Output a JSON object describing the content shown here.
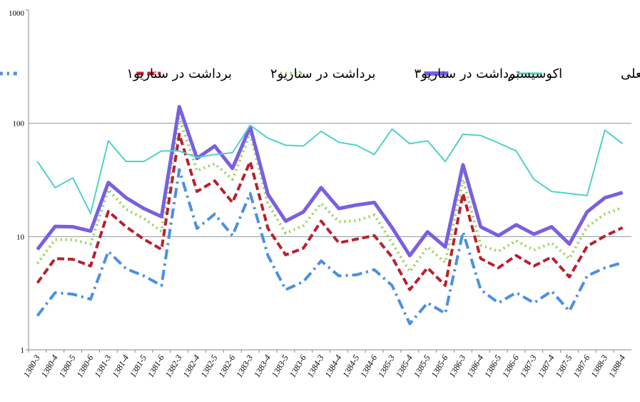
{
  "chart_data": {
    "type": "line",
    "log_scale": true,
    "grid": true,
    "legend_position": "top-right",
    "categories": [
      "1380-3",
      "1380-4",
      "1380-5",
      "1380-6",
      "1381-3",
      "1381-4",
      "1381-5",
      "1381-6",
      "1382-3",
      "1382-4",
      "1382-5",
      "1382-6",
      "1383-3",
      "1383-4",
      "1383-5",
      "1383-6",
      "1384-3",
      "1384-4",
      "1384-5",
      "1384-6",
      "1385-3",
      "1385-4",
      "1385-5",
      "1385-6",
      "1386-3",
      "1386-4",
      "1386-5",
      "1386-6",
      "1387-3",
      "1387-4",
      "1387-5",
      "1387-6",
      "1388-3",
      "1388-4"
    ],
    "ylim": [
      1,
      1000
    ],
    "yticks": [
      1,
      10,
      100,
      1000
    ],
    "series": [
      {
        "name": "برداشت فعلی",
        "color": "#4fd1c9",
        "style": "solid",
        "width": 2,
        "values": [
          46,
          27,
          33,
          16,
          70,
          46,
          46,
          57,
          57,
          50,
          53,
          55,
          96,
          74,
          64,
          63,
          85,
          68,
          64,
          53,
          89,
          66,
          70,
          46,
          80,
          78,
          67,
          57,
          32,
          25,
          24,
          23,
          87,
          66
        ]
      },
      {
        "name": "اکوسیستم",
        "color": "#7a5fe0",
        "style": "solid",
        "width": 5,
        "values": [
          7.7,
          12.3,
          12.2,
          11.2,
          30,
          22,
          17.7,
          15,
          140,
          49,
          63,
          40,
          93,
          23.6,
          13.7,
          16.5,
          27,
          17.7,
          19,
          20,
          12,
          6.8,
          11,
          8.1,
          43,
          12.2,
          10.2,
          12.7,
          10.5,
          12.2,
          8.6,
          16.5,
          22,
          24.5
        ]
      },
      {
        "name": "برداشت در سناریو۳",
        "color": "#92d050",
        "style": "dot",
        "width": 4,
        "values": [
          5.8,
          9.4,
          9.4,
          8.6,
          26,
          17.4,
          14.5,
          11.1,
          112,
          38,
          44,
          32,
          81,
          19.6,
          10.7,
          12.5,
          19.6,
          13.5,
          13.8,
          15.5,
          8.8,
          4.9,
          8.1,
          5.9,
          32,
          8.4,
          7.4,
          9.2,
          7.6,
          8.8,
          6.4,
          12.2,
          15.8,
          18
        ]
      },
      {
        "name": "برداشت در سناریو۲",
        "color": "#b8202e",
        "style": "dash",
        "width": 4,
        "values": [
          3.9,
          6.4,
          6.3,
          5.5,
          16.7,
          12.2,
          9.5,
          7.7,
          80,
          25,
          31,
          20,
          46,
          11.8,
          6.9,
          7.9,
          13.7,
          8.8,
          9.5,
          10.2,
          6.6,
          3.4,
          5.3,
          3.7,
          24,
          6.4,
          5.3,
          6.8,
          5.5,
          6.6,
          4.4,
          8.2,
          10.1,
          12
        ]
      },
      {
        "name": "برداشت در سناریو۱",
        "color": "#4a90e2",
        "style": "dashdot",
        "width": 4,
        "values": [
          2.0,
          3.2,
          3.1,
          2.8,
          7.4,
          5.2,
          4.5,
          3.7,
          39,
          11.8,
          15.8,
          10.2,
          24,
          6.8,
          3.4,
          4,
          6.1,
          4.5,
          4.6,
          5.1,
          3.7,
          1.7,
          2.6,
          2.1,
          11,
          3.4,
          2.6,
          3.2,
          2.6,
          3.3,
          2.2,
          4.5,
          5.3,
          5.9
        ]
      }
    ]
  }
}
